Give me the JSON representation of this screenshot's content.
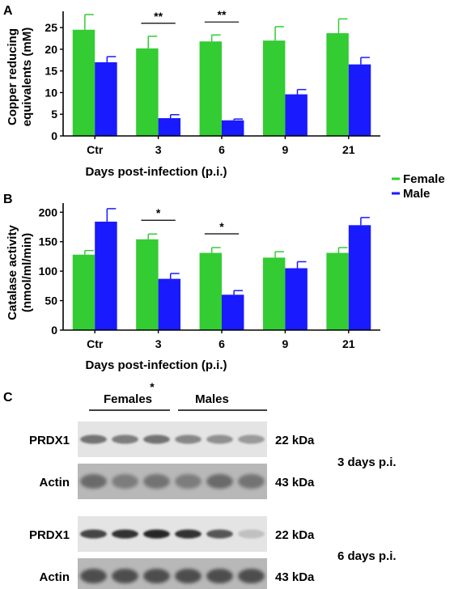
{
  "panels": {
    "a_label": "A",
    "b_label": "B",
    "c_label": "C"
  },
  "legend": {
    "female": "Female",
    "male": "Male",
    "female_color": "#33cc33",
    "male_color": "#1a1aff"
  },
  "chart_data": [
    {
      "type": "bar",
      "title": "",
      "xlabel": "Days post-infection (p.i.)",
      "ylabel_line1": "Copper reducing",
      "ylabel_line2": "equivalents (mM)",
      "categories": [
        "Ctr",
        "3",
        "6",
        "9",
        "21"
      ],
      "yticks": [
        "0",
        "5",
        "10",
        "15",
        "20",
        "25"
      ],
      "ylim": [
        0,
        28
      ],
      "series": [
        {
          "name": "Female",
          "color": "#33cc33",
          "values": [
            24.5,
            20.2,
            21.8,
            22.0,
            23.7
          ],
          "errors": [
            3.5,
            2.8,
            1.5,
            3.2,
            3.3
          ]
        },
        {
          "name": "Male",
          "color": "#1a1aff",
          "values": [
            17.0,
            4.1,
            3.6,
            9.6,
            16.5
          ],
          "errors": [
            1.3,
            0.8,
            0.3,
            1.1,
            1.6
          ]
        }
      ],
      "significance": [
        {
          "category_index": 1,
          "label": "**"
        },
        {
          "category_index": 2,
          "label": "**"
        }
      ],
      "grid": false,
      "legend_position": "right"
    },
    {
      "type": "bar",
      "title": "",
      "xlabel": "Days post-infection (p.i.)",
      "ylabel_line1": "Catalase activity",
      "ylabel_line2": "(nmol/ml/min)",
      "categories": [
        "Ctr",
        "3",
        "6",
        "9",
        "21"
      ],
      "yticks": [
        "0",
        "50",
        "100",
        "150",
        "200"
      ],
      "ylim": [
        0,
        210
      ],
      "series": [
        {
          "name": "Female",
          "color": "#33cc33",
          "values": [
            128,
            154,
            131,
            123,
            131
          ],
          "errors": [
            7,
            9,
            9,
            10,
            9
          ]
        },
        {
          "name": "Male",
          "color": "#1a1aff",
          "values": [
            184,
            87,
            60,
            105,
            178
          ],
          "errors": [
            22,
            9,
            7,
            11,
            13
          ]
        }
      ],
      "significance": [
        {
          "category_index": 1,
          "label": "*"
        },
        {
          "category_index": 2,
          "label": "*"
        }
      ],
      "grid": false,
      "legend_position": "right"
    }
  ],
  "western_blot": {
    "star": "*",
    "groups": {
      "females": "Females",
      "males": "Males"
    },
    "rows": [
      {
        "label": "PRDX1",
        "kda": "22 kDa",
        "intensities": [
          0.55,
          0.5,
          0.55,
          0.45,
          0.4,
          0.35
        ]
      },
      {
        "label": "Actin",
        "kda": "43 kDa",
        "intensities": [
          0.6,
          0.5,
          0.55,
          0.5,
          0.6,
          0.55
        ]
      },
      {
        "label": "PRDX1",
        "kda": "22 kDa",
        "intensities": [
          0.8,
          0.9,
          0.95,
          0.9,
          0.7,
          0.15
        ]
      },
      {
        "label": "Actin",
        "kda": "43 kDa",
        "intensities": [
          0.75,
          0.75,
          0.75,
          0.75,
          0.75,
          0.75
        ]
      }
    ],
    "timepoints": {
      "top": "3 days p.i.",
      "bottom": "6 days p.i."
    }
  }
}
